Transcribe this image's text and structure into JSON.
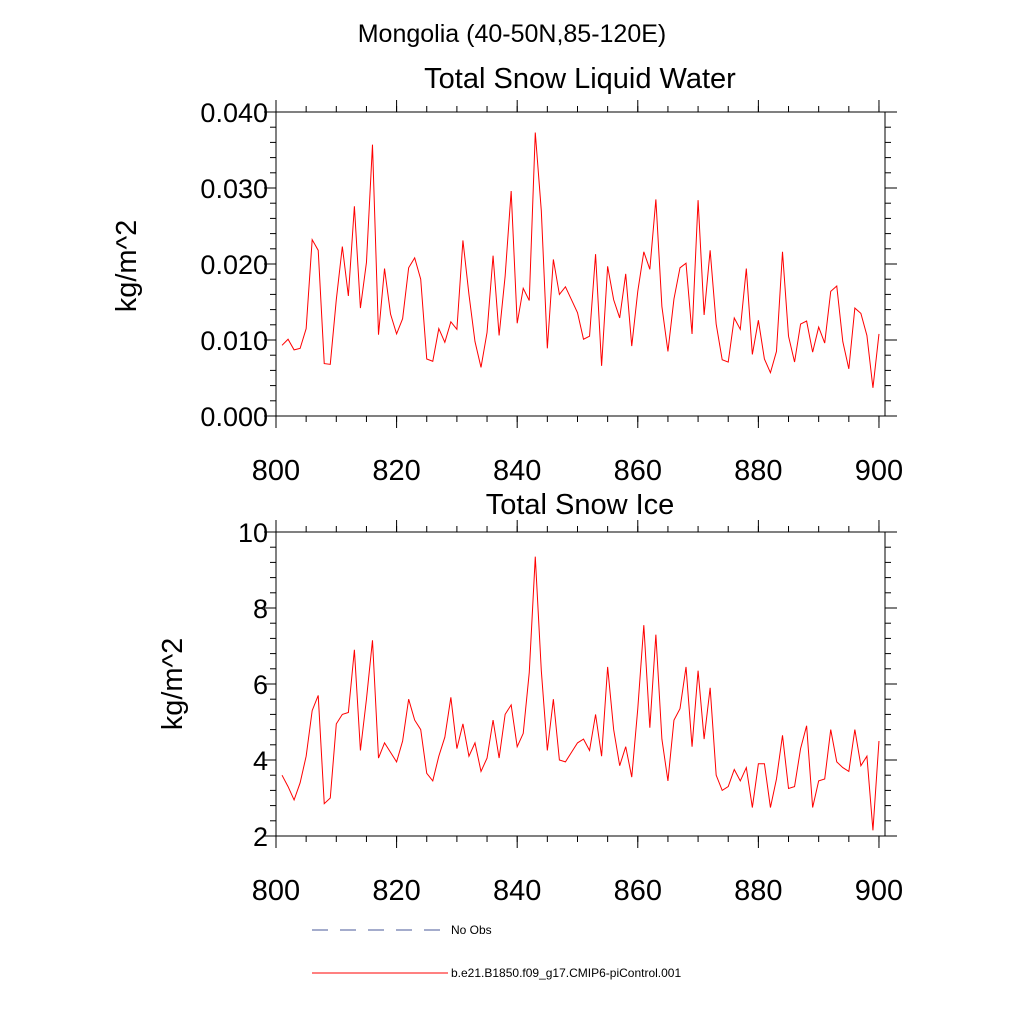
{
  "figure": {
    "suptitle": "Mongolia (40-50N,85-120E)"
  },
  "colors": {
    "model_line": "#ff0000",
    "obs_line": "#4a5a9a",
    "axis": "#000000"
  },
  "legend": {
    "obs_label": "No Obs",
    "model_label": "b.e21.B1850.f09_g17.CMIP6-piControl.001"
  },
  "chart_data": [
    {
      "type": "line",
      "title": "Total Snow Liquid Water",
      "xlabel": "",
      "ylabel": "kg/m^2",
      "xlim": [
        800,
        901
      ],
      "ylim": [
        0.0,
        0.04
      ],
      "xticks": [
        800,
        820,
        840,
        860,
        880,
        900
      ],
      "xtick_labels": [
        "800",
        "820",
        "840",
        "860",
        "880",
        "900"
      ],
      "yticks": [
        0.0,
        0.01,
        0.02,
        0.03,
        0.04
      ],
      "ytick_labels": [
        "0.000",
        "0.010",
        "0.020",
        "0.030",
        "0.040"
      ],
      "y_minor_step": 0.002,
      "x_minor_step": 5,
      "grid": false,
      "series": [
        {
          "name": "b.e21.B1850.f09_g17.CMIP6-piControl.001",
          "x_start": 801,
          "values": [
            0.0093,
            0.0101,
            0.0087,
            0.0089,
            0.0115,
            0.0232,
            0.0218,
            0.0069,
            0.0068,
            0.0153,
            0.0223,
            0.0158,
            0.0276,
            0.0142,
            0.0202,
            0.0357,
            0.0107,
            0.0194,
            0.0134,
            0.0108,
            0.0128,
            0.0195,
            0.0208,
            0.018,
            0.0075,
            0.0072,
            0.0115,
            0.0097,
            0.0124,
            0.0114,
            0.0231,
            0.016,
            0.0098,
            0.0064,
            0.011,
            0.0211,
            0.0106,
            0.0184,
            0.0296,
            0.0122,
            0.0168,
            0.0152,
            0.0373,
            0.027,
            0.0089,
            0.0206,
            0.016,
            0.017,
            0.0153,
            0.0136,
            0.0101,
            0.0105,
            0.0213,
            0.0066,
            0.0197,
            0.0153,
            0.0129,
            0.0187,
            0.0092,
            0.0164,
            0.0216,
            0.0193,
            0.0285,
            0.0144,
            0.0085,
            0.0154,
            0.0195,
            0.0201,
            0.0108,
            0.0284,
            0.0133,
            0.0218,
            0.0121,
            0.0074,
            0.0071,
            0.0129,
            0.0114,
            0.0194,
            0.0081,
            0.0126,
            0.0075,
            0.0057,
            0.0085,
            0.0216,
            0.0105,
            0.0071,
            0.0121,
            0.0125,
            0.0084,
            0.0117,
            0.0096,
            0.0164,
            0.0171,
            0.0098,
            0.0062,
            0.0142,
            0.0135,
            0.0106,
            0.0037,
            0.0108
          ]
        }
      ]
    },
    {
      "type": "line",
      "title": "Total Snow Ice",
      "xlabel": "",
      "ylabel": "kg/m^2",
      "xlim": [
        800,
        901
      ],
      "ylim": [
        2,
        10
      ],
      "xticks": [
        800,
        820,
        840,
        860,
        880,
        900
      ],
      "xtick_labels": [
        "800",
        "820",
        "840",
        "860",
        "880",
        "900"
      ],
      "yticks": [
        2,
        4,
        6,
        8,
        10
      ],
      "ytick_labels": [
        "2",
        "4",
        "6",
        "8",
        "10"
      ],
      "y_minor_step": 0.4,
      "x_minor_step": 5,
      "grid": false,
      "series": [
        {
          "name": "b.e21.B1850.f09_g17.CMIP6-piControl.001",
          "x_start": 801,
          "values": [
            3.6,
            3.3,
            2.95,
            3.4,
            4.1,
            5.3,
            5.7,
            2.85,
            3.0,
            4.95,
            5.2,
            5.25,
            6.9,
            4.25,
            5.6,
            7.15,
            4.05,
            4.45,
            4.2,
            3.95,
            4.5,
            5.6,
            5.05,
            4.8,
            3.65,
            3.45,
            4.1,
            4.6,
            5.65,
            4.3,
            4.95,
            4.1,
            4.45,
            3.7,
            4.05,
            5.05,
            4.05,
            5.2,
            5.45,
            4.35,
            4.7,
            6.3,
            9.35,
            6.35,
            4.25,
            5.6,
            4.0,
            3.95,
            4.2,
            4.45,
            4.55,
            4.25,
            5.2,
            4.1,
            6.45,
            4.8,
            3.85,
            4.35,
            3.55,
            5.35,
            7.55,
            4.85,
            7.3,
            4.55,
            3.45,
            5.05,
            5.35,
            6.45,
            4.35,
            6.35,
            4.55,
            5.9,
            3.6,
            3.2,
            3.3,
            3.75,
            3.45,
            3.8,
            2.75,
            3.9,
            3.9,
            2.75,
            3.5,
            4.65,
            3.25,
            3.3,
            4.3,
            4.9,
            2.75,
            3.45,
            3.5,
            4.8,
            3.95,
            3.8,
            3.7,
            4.8,
            3.85,
            4.1,
            2.15,
            4.5
          ]
        }
      ]
    }
  ]
}
